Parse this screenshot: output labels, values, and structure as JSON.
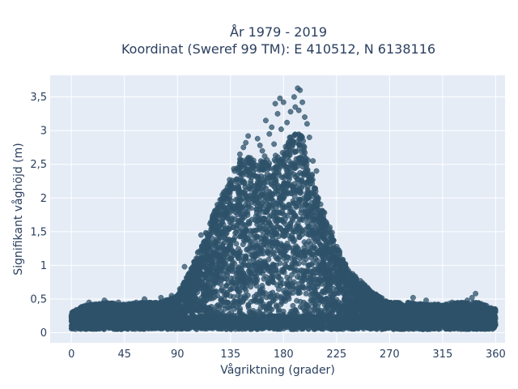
{
  "chart_data": {
    "type": "scatter",
    "title": "År 1979 - 2019",
    "subtitle": "Koordinat (Sweref 99 TM): E 410512, N 6138116",
    "xlabel": "Vågriktning (grader)",
    "ylabel": "Signifikant våghöjd (m)",
    "xlim": [
      -18,
      368
    ],
    "ylim": [
      -0.15,
      3.82
    ],
    "x_ticks": [
      0,
      45,
      90,
      135,
      180,
      225,
      270,
      315,
      360
    ],
    "x_tick_labels": [
      "0",
      "45",
      "90",
      "135",
      "180",
      "225",
      "270",
      "315",
      "360"
    ],
    "y_ticks": [
      0,
      0.5,
      1,
      1.5,
      2,
      2.5,
      3,
      3.5
    ],
    "y_tick_labels": [
      "0",
      "0,5",
      "1",
      "1,5",
      "2",
      "2,5",
      "3",
      "3,5"
    ],
    "grid": true,
    "marker_color": "#2d5269",
    "background_color": "#e5ecf6",
    "envelope": {
      "direction": [
        0,
        10,
        30,
        45,
        60,
        75,
        90,
        100,
        110,
        120,
        130,
        135,
        140,
        150,
        160,
        170,
        180,
        185,
        190,
        195,
        200,
        205,
        210,
        220,
        230,
        240,
        250,
        260,
        270,
        285,
        300,
        315,
        330,
        345,
        360
      ],
      "max_height": [
        0.3,
        0.4,
        0.45,
        0.42,
        0.45,
        0.45,
        0.55,
        0.9,
        1.3,
        1.75,
        2.15,
        2.3,
        2.55,
        2.65,
        2.55,
        2.6,
        2.7,
        2.9,
        2.95,
        2.95,
        2.7,
        2.3,
        2.0,
        1.55,
        1.1,
        0.85,
        0.7,
        0.55,
        0.45,
        0.45,
        0.42,
        0.42,
        0.45,
        0.45,
        0.35
      ]
    },
    "outliers": [
      {
        "x": 192,
        "y": 3.63
      },
      {
        "x": 194,
        "y": 3.6
      },
      {
        "x": 189,
        "y": 3.5
      },
      {
        "x": 177,
        "y": 3.48
      },
      {
        "x": 180,
        "y": 3.42
      },
      {
        "x": 196,
        "y": 3.42
      },
      {
        "x": 173,
        "y": 3.4
      },
      {
        "x": 190,
        "y": 3.35
      },
      {
        "x": 193,
        "y": 3.3
      },
      {
        "x": 186,
        "y": 3.28
      },
      {
        "x": 175,
        "y": 3.25
      },
      {
        "x": 198,
        "y": 3.2
      },
      {
        "x": 165,
        "y": 3.15
      },
      {
        "x": 183,
        "y": 3.12
      },
      {
        "x": 200,
        "y": 3.1
      },
      {
        "x": 170,
        "y": 3.05
      },
      {
        "x": 178,
        "y": 3.02
      },
      {
        "x": 168,
        "y": 2.95
      },
      {
        "x": 158,
        "y": 2.88
      },
      {
        "x": 148,
        "y": 2.82
      },
      {
        "x": 150,
        "y": 2.92
      },
      {
        "x": 146,
        "y": 2.75
      },
      {
        "x": 143,
        "y": 2.65
      },
      {
        "x": 160,
        "y": 2.78
      },
      {
        "x": 162,
        "y": 2.7
      },
      {
        "x": 164,
        "y": 2.62
      },
      {
        "x": 172,
        "y": 2.8
      },
      {
        "x": 202,
        "y": 2.9
      },
      {
        "x": 205,
        "y": 2.55
      },
      {
        "x": 208,
        "y": 2.4
      },
      {
        "x": 96,
        "y": 0.98
      },
      {
        "x": 92,
        "y": 0.65
      },
      {
        "x": 85,
        "y": 0.55
      },
      {
        "x": 76,
        "y": 0.52
      },
      {
        "x": 290,
        "y": 0.52
      },
      {
        "x": 301,
        "y": 0.48
      },
      {
        "x": 323,
        "y": 0.45
      },
      {
        "x": 336,
        "y": 0.48
      },
      {
        "x": 340,
        "y": 0.52
      },
      {
        "x": 343,
        "y": 0.58
      },
      {
        "x": 318,
        "y": 0.42
      },
      {
        "x": 232,
        "y": 0.78
      },
      {
        "x": 238,
        "y": 0.72
      },
      {
        "x": 245,
        "y": 0.65
      },
      {
        "x": 15,
        "y": 0.45
      },
      {
        "x": 28,
        "y": 0.48
      },
      {
        "x": 40,
        "y": 0.45
      },
      {
        "x": 62,
        "y": 0.5
      },
      {
        "x": 55,
        "y": 0.45
      },
      {
        "x": 110,
        "y": 1.45
      }
    ],
    "baseline_min": 0.05,
    "density_floor": 0.2
  }
}
